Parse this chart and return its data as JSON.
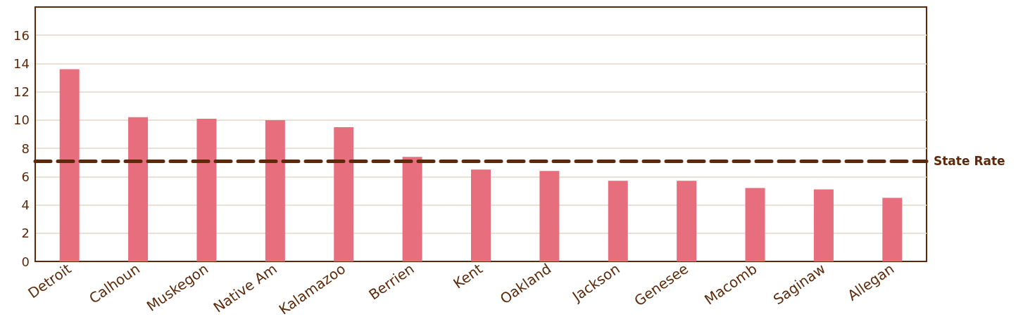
{
  "chart_data": {
    "type": "bar",
    "categories": [
      "Detroit",
      "Calhoun",
      "Muskegon",
      "Native Am",
      "Kalamazoo",
      "Berrien",
      "Kent",
      "Oakland",
      "Jackson",
      "Genesee",
      "Macomb",
      "Saginaw",
      "Allegan"
    ],
    "values": [
      13.6,
      10.2,
      10.1,
      10.0,
      9.5,
      7.4,
      6.5,
      6.4,
      5.7,
      5.7,
      5.2,
      5.1,
      4.5
    ],
    "color": "#e76e7c",
    "ylim": [
      0,
      18
    ],
    "yticks": [
      0,
      2,
      4,
      6,
      8,
      10,
      12,
      14,
      16
    ],
    "grid": "y",
    "ref_lines": [
      {
        "axis": "y",
        "value": 7.1,
        "label": "State Rate",
        "color": "#5c2a0a",
        "line_style": "dashed"
      }
    ]
  }
}
